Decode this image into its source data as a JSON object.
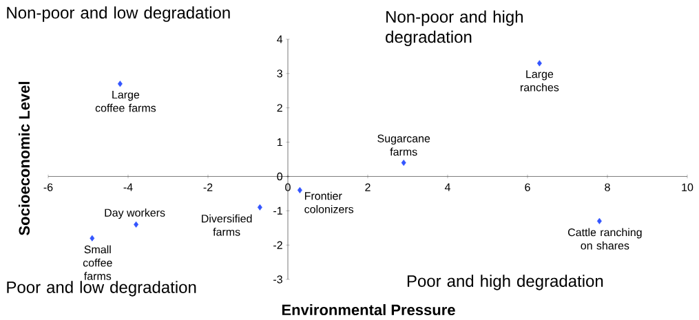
{
  "chart_data": {
    "type": "scatter",
    "xlabel": "Environmental Pressure",
    "ylabel": "Socioeconomic Level",
    "x": [
      -4.2,
      6.3,
      2.9,
      0.3,
      -0.7,
      -3.8,
      -4.9,
      7.8
    ],
    "values": [
      2.7,
      3.3,
      0.4,
      -0.4,
      -0.9,
      -1.4,
      -1.8,
      -1.3
    ],
    "color": "#3355ff",
    "marker": "diamond",
    "grid": false,
    "xlim": [
      -6,
      10
    ],
    "ylim": [
      -3,
      4
    ],
    "xticks": [
      -6,
      -4,
      -2,
      0,
      2,
      4,
      6,
      8,
      10
    ],
    "yticks": [
      -3,
      -2,
      -1,
      0,
      1,
      2,
      3,
      4
    ],
    "annotations": [
      {
        "text": "Large coffee farms",
        "x": -4.2,
        "y": 2.7
      },
      {
        "text": "Large ranches",
        "x": 6.3,
        "y": 3.3
      },
      {
        "text": "Sugarcane farms",
        "x": 2.9,
        "y": 0.4
      },
      {
        "text": "Frontier colonizers",
        "x": 0.3,
        "y": -0.4
      },
      {
        "text": "Diversified farms",
        "x": -0.7,
        "y": -0.9
      },
      {
        "text": "Day workers",
        "x": -3.8,
        "y": -1.4
      },
      {
        "text": "Small coffee farms",
        "x": -4.9,
        "y": -1.8
      },
      {
        "text": "Cattle ranching on shares",
        "x": 7.8,
        "y": -1.3
      },
      "Non-poor and low degradation",
      "Non-poor and high degradation",
      "Poor and low degradation",
      "Poor and high degradation"
    ]
  }
}
